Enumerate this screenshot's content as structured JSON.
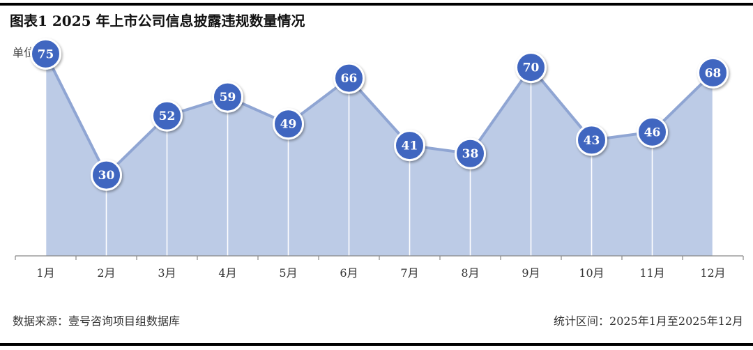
{
  "header": {
    "title": "图表1  2025 年上市公司信息披露违规数量情况",
    "unit": "单位：家"
  },
  "footer": {
    "source": "数据来源：壹号咨询项目组数据库",
    "period": "统计区间：2025年1月至2025年12月"
  },
  "colors": {
    "area_fill": "#bccbe6",
    "line": "#8fa5d3",
    "marker_fill": "#3f66c0",
    "marker_stroke": "#ffffff",
    "axis": "#888888",
    "label_text": "#ffffff"
  },
  "chart_data": {
    "type": "area",
    "categories": [
      "1月",
      "2月",
      "3月",
      "4月",
      "5月",
      "6月",
      "7月",
      "8月",
      "9月",
      "10月",
      "11月",
      "12月"
    ],
    "series": [
      {
        "values": [
          75,
          30,
          52,
          59,
          49,
          66,
          41,
          38,
          70,
          43,
          46,
          68
        ]
      }
    ],
    "ylim": [
      0,
      80
    ],
    "grid": false,
    "legend": "none",
    "data_labels": true
  }
}
